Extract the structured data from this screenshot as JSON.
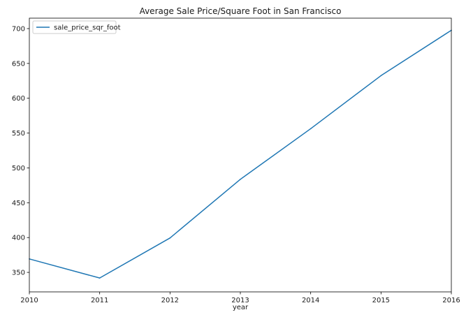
{
  "chart_data": {
    "type": "line",
    "title": "Average Sale Price/Square Foot in San Francisco",
    "xlabel": "year",
    "ylabel": "",
    "x": [
      2010,
      2011,
      2012,
      2013,
      2014,
      2015,
      2016
    ],
    "series": [
      {
        "name": "sale_price_sqr_foot",
        "values": [
          369.3,
          341.9,
          399.4,
          483.6,
          556.3,
          632.5,
          697.6
        ],
        "color": "#1f77b4"
      }
    ],
    "xlim": [
      2010,
      2016
    ],
    "ylim": [
      322,
      715
    ],
    "xticks": [
      "2010",
      "2011",
      "2012",
      "2013",
      "2014",
      "2015",
      "2016"
    ],
    "yticks": [
      350,
      400,
      450,
      500,
      550,
      600,
      650,
      700
    ],
    "legend_position": "top-left",
    "grid": false
  }
}
